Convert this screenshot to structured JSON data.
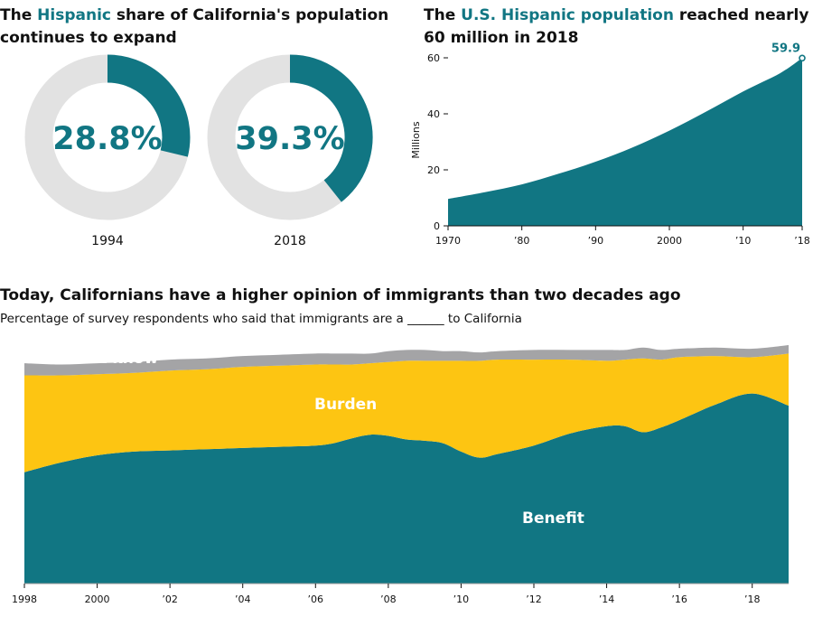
{
  "colors": {
    "teal": "#117683",
    "yellow": "#FDC512",
    "gray": "#A4A4A6",
    "ring": "#E2E2E2"
  },
  "chart_data": [
    {
      "type": "pie",
      "title_parts": [
        "The ",
        "Hispanic",
        " share of California's population",
        "continues to expand"
      ],
      "series": [
        {
          "label": "1994",
          "value": 28.8,
          "display": "28.8%"
        },
        {
          "label": "2018",
          "value": 39.3,
          "display": "39.3%"
        }
      ]
    },
    {
      "type": "area",
      "title_parts": [
        "The ",
        "U.S. Hispanic population",
        " reached nearly",
        "60 million in 2018"
      ],
      "ylabel": "Millions",
      "ylim": [
        0,
        60
      ],
      "yticks": [
        "0",
        "20",
        "40",
        "60"
      ],
      "xticks": [
        {
          "year": 1970,
          "label": "1970"
        },
        {
          "year": 1980,
          "label": "’80"
        },
        {
          "year": 1990,
          "label": "’90"
        },
        {
          "year": 2000,
          "label": "2000"
        },
        {
          "year": 2010,
          "label": "’10"
        },
        {
          "year": 2018,
          "label": "’18"
        }
      ],
      "x": [
        1970,
        1975,
        1980,
        1985,
        1990,
        1995,
        2000,
        2005,
        2010,
        2015,
        2018
      ],
      "values": [
        9.6,
        12.0,
        14.8,
        18.6,
        22.9,
        28.0,
        34.0,
        40.8,
        48.0,
        54.5,
        59.9
      ],
      "annotation": {
        "x": 2018,
        "value": 59.9,
        "text": "59.9"
      }
    },
    {
      "type": "area",
      "stacked": true,
      "title": "Today, Californians have a higher opinion of immigrants than two decades ago",
      "subtitle": "Percentage of survey respondents who said that immigrants are a ______ to California",
      "ylim": [
        0,
        100
      ],
      "xticks": [
        {
          "year": 1998,
          "label": "1998"
        },
        {
          "year": 2000,
          "label": "2000"
        },
        {
          "year": 2002,
          "label": "’02"
        },
        {
          "year": 2004,
          "label": "’04"
        },
        {
          "year": 2006,
          "label": "’06"
        },
        {
          "year": 2008,
          "label": "’08"
        },
        {
          "year": 2010,
          "label": "’10"
        },
        {
          "year": 2012,
          "label": "’12"
        },
        {
          "year": 2014,
          "label": "’14"
        },
        {
          "year": 2016,
          "label": "’16"
        },
        {
          "year": 2018,
          "label": "’18"
        }
      ],
      "x": [
        1998,
        1999,
        2000,
        2001,
        2002,
        2003,
        2004,
        2005,
        2006,
        2006.5,
        2007,
        2007.5,
        2008,
        2008.5,
        2009,
        2009.5,
        2010,
        2010.5,
        2011,
        2012,
        2013,
        2014,
        2014.5,
        2015,
        2015.5,
        2016,
        2017,
        2018,
        2019
      ],
      "series": [
        {
          "name": "Benefit",
          "values": [
            46,
            50,
            53,
            54.5,
            55,
            55.5,
            56,
            56.5,
            57,
            58,
            60,
            61.5,
            61,
            59.5,
            59,
            58,
            54.5,
            52,
            53.5,
            57,
            62,
            65,
            65,
            62.5,
            64.5,
            67.5,
            74,
            78.5,
            73.5
          ]
        },
        {
          "name": "Burden",
          "values": [
            40,
            36,
            33.5,
            32.5,
            33,
            33,
            33.5,
            33.5,
            33.5,
            32.5,
            30.5,
            29.5,
            30.5,
            32.5,
            33,
            34,
            37.5,
            40,
            39,
            35.5,
            30.5,
            27,
            27.5,
            30.5,
            28,
            26,
            20,
            15,
            21.5
          ]
        },
        {
          "name": "Don’t know",
          "values": [
            5,
            4.5,
            4.5,
            4.5,
            4.5,
            4.5,
            4.5,
            4.5,
            4.5,
            4.5,
            4.5,
            4,
            4.5,
            4.5,
            4.5,
            4,
            4,
            3.5,
            3.5,
            4,
            4,
            4.5,
            4,
            4.5,
            4,
            3.5,
            3.5,
            3.5,
            3.5
          ]
        }
      ]
    }
  ]
}
